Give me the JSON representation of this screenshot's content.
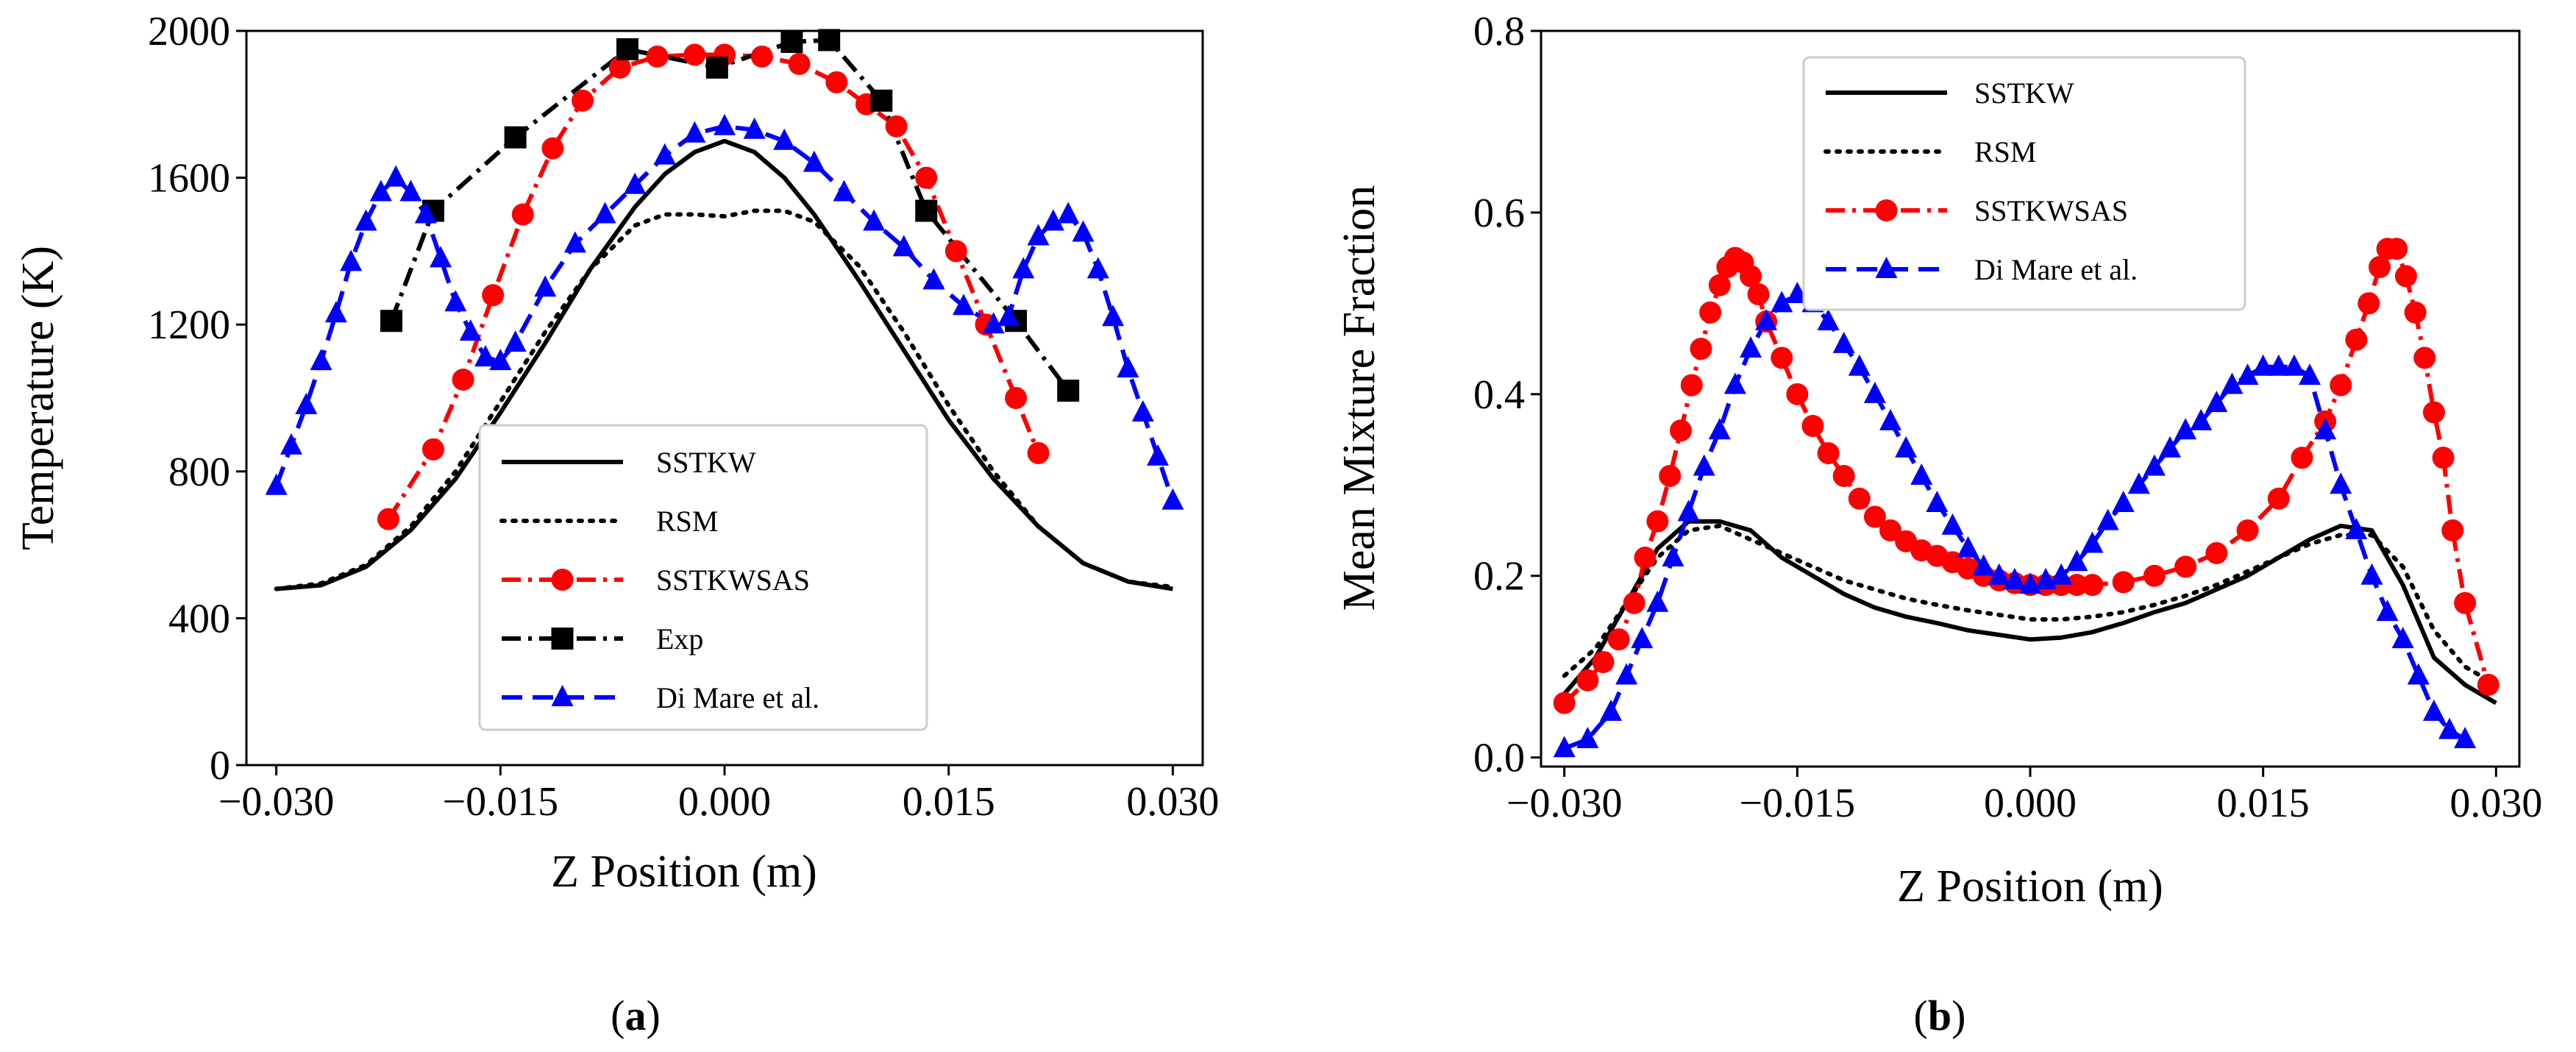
{
  "chart_data": [
    {
      "type": "line",
      "panel": "a",
      "caption": {
        "open": "(",
        "label": "a",
        "close": ")"
      },
      "xlabel": "Z Position (m)",
      "ylabel": "Temperature (K)",
      "xlim": [
        -0.032,
        0.032
      ],
      "ylim": [
        0,
        2000
      ],
      "xticks": [
        -0.03,
        -0.015,
        0.0,
        0.015,
        0.03
      ],
      "xtick_labels": [
        "−0.030",
        "−0.015",
        "0.000",
        "0.015",
        "0.030"
      ],
      "yticks": [
        0,
        400,
        800,
        1200,
        1600,
        2000
      ],
      "ytick_labels": [
        "0",
        "400",
        "800",
        "1200",
        "1600",
        "2000"
      ],
      "legend_position": "lower-center",
      "series": [
        {
          "name": "SSTKW",
          "color": "#000000",
          "style": "solid",
          "marker": "none",
          "x": [
            -0.03,
            -0.027,
            -0.024,
            -0.021,
            -0.018,
            -0.015,
            -0.012,
            -0.009,
            -0.006,
            -0.004,
            -0.002,
            0.0,
            0.002,
            0.004,
            0.006,
            0.009,
            0.012,
            0.015,
            0.018,
            0.021,
            0.024,
            0.027,
            0.03
          ],
          "y": [
            480,
            490,
            540,
            640,
            780,
            960,
            1150,
            1350,
            1520,
            1610,
            1670,
            1700,
            1670,
            1600,
            1500,
            1320,
            1130,
            940,
            780,
            650,
            550,
            500,
            480
          ]
        },
        {
          "name": "RSM",
          "color": "#000000",
          "style": "dotted",
          "marker": "none",
          "x": [
            -0.03,
            -0.027,
            -0.024,
            -0.021,
            -0.018,
            -0.015,
            -0.012,
            -0.009,
            -0.006,
            -0.004,
            -0.002,
            0.0,
            0.002,
            0.004,
            0.006,
            0.009,
            0.012,
            0.015,
            0.018,
            0.021,
            0.024,
            0.027,
            0.03
          ],
          "y": [
            480,
            495,
            545,
            650,
            800,
            990,
            1180,
            1350,
            1470,
            1500,
            1500,
            1495,
            1510,
            1510,
            1480,
            1360,
            1180,
            980,
            800,
            650,
            550,
            500,
            485
          ]
        },
        {
          "name": "SSTKWSAS",
          "color": "#ff0000",
          "style": "dashdot",
          "marker": "circle",
          "x": [
            -0.0225,
            -0.0195,
            -0.0175,
            -0.0155,
            -0.0135,
            -0.0115,
            -0.0095,
            -0.007,
            -0.0045,
            -0.002,
            0.0,
            0.0025,
            0.005,
            0.0075,
            0.0095,
            0.0115,
            0.0135,
            0.0155,
            0.0175,
            0.0195,
            0.021
          ],
          "y": [
            670,
            860,
            1050,
            1280,
            1500,
            1680,
            1810,
            1900,
            1930,
            1935,
            1935,
            1930,
            1910,
            1860,
            1800,
            1740,
            1600,
            1400,
            1200,
            1000,
            850
          ]
        },
        {
          "name": "Exp",
          "color": "#000000",
          "style": "dashdot",
          "marker": "square",
          "x": [
            -0.0223,
            -0.0195,
            -0.014,
            -0.0065,
            -0.0005,
            0.0045,
            0.007,
            0.0105,
            0.0135,
            0.0195,
            0.023
          ],
          "y": [
            1210,
            1510,
            1710,
            1950,
            1900,
            1970,
            1975,
            1810,
            1510,
            1210,
            1020
          ]
        },
        {
          "name": "Di Mare et al.",
          "color": "#0000ff",
          "style": "dashed",
          "marker": "triangle",
          "x": [
            -0.03,
            -0.029,
            -0.028,
            -0.027,
            -0.026,
            -0.025,
            -0.024,
            -0.023,
            -0.022,
            -0.021,
            -0.02,
            -0.019,
            -0.018,
            -0.017,
            -0.016,
            -0.015,
            -0.014,
            -0.012,
            -0.01,
            -0.008,
            -0.006,
            -0.004,
            -0.002,
            0.0,
            0.002,
            0.004,
            0.006,
            0.008,
            0.01,
            0.012,
            0.014,
            0.016,
            0.018,
            0.019,
            0.02,
            0.021,
            0.022,
            0.023,
            0.024,
            0.025,
            0.026,
            0.027,
            0.028,
            0.029,
            0.03
          ],
          "y": [
            760,
            870,
            980,
            1100,
            1230,
            1370,
            1480,
            1560,
            1600,
            1560,
            1500,
            1380,
            1260,
            1180,
            1110,
            1100,
            1150,
            1300,
            1420,
            1500,
            1580,
            1660,
            1720,
            1740,
            1730,
            1700,
            1640,
            1560,
            1480,
            1410,
            1320,
            1250,
            1200,
            1220,
            1350,
            1440,
            1480,
            1500,
            1450,
            1350,
            1220,
            1080,
            960,
            840,
            720
          ]
        }
      ]
    },
    {
      "type": "line",
      "panel": "b",
      "caption": {
        "open": "(",
        "label": "b",
        "close": ")"
      },
      "xlabel": "Z Position (m)",
      "ylabel": "Mean Mixture Fraction",
      "xlim": [
        -0.0315,
        0.0315
      ],
      "ylim": [
        -0.01,
        0.8
      ],
      "xticks": [
        -0.03,
        -0.015,
        0.0,
        0.015,
        0.03
      ],
      "xtick_labels": [
        "−0.030",
        "−0.015",
        "0.000",
        "0.015",
        "0.030"
      ],
      "yticks": [
        0.0,
        0.2,
        0.4,
        0.6,
        0.8
      ],
      "ytick_labels": [
        "0.0",
        "0.2",
        "0.4",
        "0.6",
        "0.8"
      ],
      "legend_position": "upper-left",
      "series": [
        {
          "name": "SSTKW",
          "color": "#000000",
          "style": "solid",
          "marker": "none",
          "x": [
            -0.03,
            -0.028,
            -0.026,
            -0.024,
            -0.022,
            -0.02,
            -0.018,
            -0.016,
            -0.014,
            -0.012,
            -0.01,
            -0.008,
            -0.006,
            -0.004,
            -0.002,
            0.0,
            0.002,
            0.004,
            0.006,
            0.008,
            0.01,
            0.012,
            0.014,
            0.016,
            0.018,
            0.02,
            0.022,
            0.024,
            0.026,
            0.028,
            0.03
          ],
          "y": [
            0.07,
            0.11,
            0.17,
            0.23,
            0.26,
            0.26,
            0.25,
            0.22,
            0.2,
            0.18,
            0.165,
            0.155,
            0.148,
            0.14,
            0.135,
            0.13,
            0.132,
            0.138,
            0.148,
            0.16,
            0.17,
            0.185,
            0.2,
            0.22,
            0.24,
            0.255,
            0.25,
            0.19,
            0.11,
            0.08,
            0.06
          ]
        },
        {
          "name": "RSM",
          "color": "#000000",
          "style": "dotted",
          "marker": "none",
          "x": [
            -0.03,
            -0.028,
            -0.026,
            -0.024,
            -0.022,
            -0.02,
            -0.018,
            -0.016,
            -0.014,
            -0.012,
            -0.01,
            -0.008,
            -0.006,
            -0.004,
            -0.002,
            0.0,
            0.002,
            0.004,
            0.006,
            0.008,
            0.01,
            0.012,
            0.014,
            0.016,
            0.018,
            0.02,
            0.022,
            0.024,
            0.026,
            0.028,
            0.03
          ],
          "y": [
            0.09,
            0.12,
            0.17,
            0.22,
            0.25,
            0.255,
            0.24,
            0.225,
            0.21,
            0.195,
            0.185,
            0.175,
            0.168,
            0.162,
            0.157,
            0.152,
            0.152,
            0.155,
            0.16,
            0.168,
            0.178,
            0.19,
            0.205,
            0.22,
            0.235,
            0.245,
            0.245,
            0.21,
            0.14,
            0.1,
            0.08
          ]
        },
        {
          "name": "SSTKWSAS",
          "color": "#ff0000",
          "style": "dashdot",
          "marker": "circle",
          "x": [
            -0.03,
            -0.0285,
            -0.0275,
            -0.0265,
            -0.0255,
            -0.0248,
            -0.024,
            -0.0232,
            -0.0225,
            -0.0218,
            -0.0212,
            -0.0206,
            -0.02,
            -0.0195,
            -0.019,
            -0.0185,
            -0.018,
            -0.0175,
            -0.017,
            -0.016,
            -0.015,
            -0.014,
            -0.013,
            -0.012,
            -0.011,
            -0.01,
            -0.009,
            -0.008,
            -0.007,
            -0.006,
            -0.005,
            -0.004,
            -0.003,
            -0.002,
            -0.001,
            0.0,
            0.001,
            0.002,
            0.003,
            0.004,
            0.006,
            0.008,
            0.01,
            0.012,
            0.014,
            0.016,
            0.0175,
            0.019,
            0.02,
            0.021,
            0.0218,
            0.0225,
            0.023,
            0.0236,
            0.0242,
            0.0248,
            0.0254,
            0.026,
            0.0266,
            0.0272,
            0.028,
            0.0295
          ],
          "y": [
            0.06,
            0.085,
            0.105,
            0.13,
            0.17,
            0.22,
            0.26,
            0.31,
            0.36,
            0.41,
            0.45,
            0.49,
            0.52,
            0.54,
            0.55,
            0.545,
            0.53,
            0.51,
            0.48,
            0.44,
            0.4,
            0.365,
            0.335,
            0.31,
            0.285,
            0.265,
            0.25,
            0.238,
            0.228,
            0.222,
            0.215,
            0.208,
            0.2,
            0.195,
            0.192,
            0.19,
            0.19,
            0.19,
            0.19,
            0.19,
            0.193,
            0.2,
            0.21,
            0.225,
            0.25,
            0.285,
            0.33,
            0.37,
            0.41,
            0.46,
            0.5,
            0.54,
            0.56,
            0.56,
            0.53,
            0.49,
            0.44,
            0.38,
            0.33,
            0.25,
            0.17,
            0.08
          ]
        },
        {
          "name": "Di Mare et al.",
          "color": "#0000ff",
          "style": "dashed",
          "marker": "triangle",
          "x": [
            -0.03,
            -0.0285,
            -0.027,
            -0.026,
            -0.025,
            -0.024,
            -0.023,
            -0.022,
            -0.021,
            -0.02,
            -0.019,
            -0.018,
            -0.017,
            -0.016,
            -0.015,
            -0.014,
            -0.013,
            -0.012,
            -0.011,
            -0.01,
            -0.009,
            -0.008,
            -0.007,
            -0.006,
            -0.005,
            -0.004,
            -0.003,
            -0.002,
            -0.001,
            0.0,
            0.001,
            0.002,
            0.003,
            0.004,
            0.005,
            0.006,
            0.007,
            0.008,
            0.009,
            0.01,
            0.011,
            0.012,
            0.013,
            0.014,
            0.015,
            0.016,
            0.017,
            0.018,
            0.019,
            0.02,
            0.021,
            0.022,
            0.023,
            0.024,
            0.025,
            0.026,
            0.027,
            0.028
          ],
          "y": [
            0.01,
            0.02,
            0.05,
            0.09,
            0.13,
            0.17,
            0.22,
            0.27,
            0.32,
            0.36,
            0.41,
            0.45,
            0.48,
            0.5,
            0.51,
            0.5,
            0.48,
            0.455,
            0.43,
            0.4,
            0.37,
            0.34,
            0.31,
            0.28,
            0.255,
            0.23,
            0.21,
            0.2,
            0.195,
            0.19,
            0.195,
            0.2,
            0.215,
            0.235,
            0.26,
            0.28,
            0.3,
            0.32,
            0.34,
            0.36,
            0.37,
            0.39,
            0.41,
            0.42,
            0.43,
            0.43,
            0.43,
            0.42,
            0.36,
            0.3,
            0.25,
            0.2,
            0.16,
            0.13,
            0.09,
            0.05,
            0.03,
            0.02
          ]
        }
      ]
    }
  ]
}
